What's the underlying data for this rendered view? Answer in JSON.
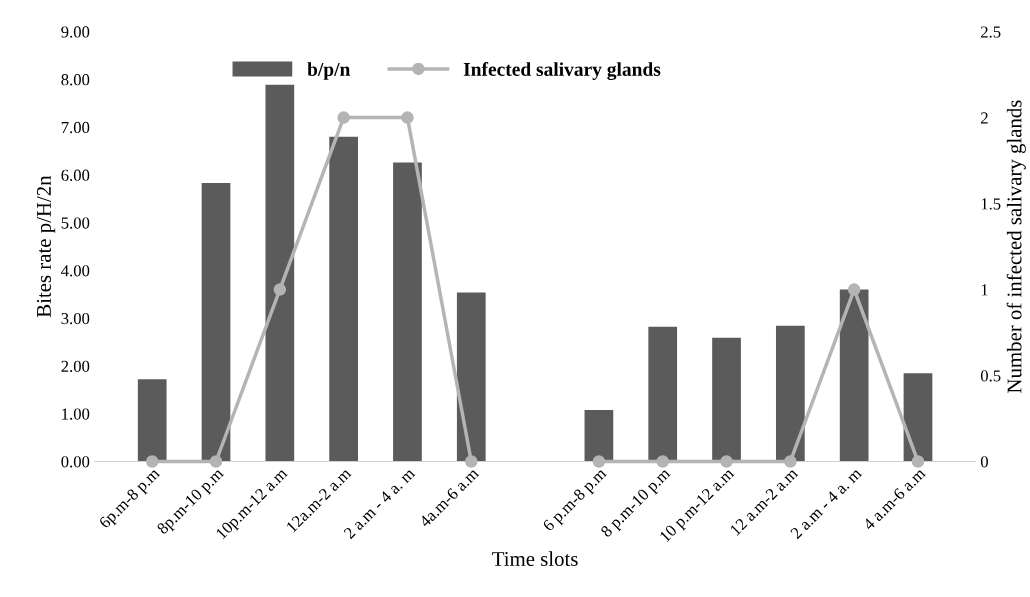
{
  "chart_data": {
    "type": "bar",
    "xlabel": "Time slots",
    "ylabel": "Bites rate p/H/2n",
    "y2label": "Number of infected salivary glands",
    "categories": [
      "6p.m-8 p.m",
      "8p.m-10 p.m",
      "10p.m-12 a.m",
      "12a.m-2 a.m",
      "2 a.m - 4 a. m",
      "4a.m-6 a.m",
      null,
      "6 p.m-8 p.m",
      "8 p.m-10 p.m",
      "10 p.m-12 a.m",
      "12 a.m-2 a.m",
      "2 a.m - 4 a. m",
      "4 a.m-6 a.m"
    ],
    "series": [
      {
        "name": "b/p/n",
        "color": "#5b5b5b",
        "values": [
          1.72,
          5.83,
          7.89,
          6.8,
          6.26,
          3.54,
          null,
          1.08,
          2.82,
          2.59,
          2.84,
          3.6,
          1.85
        ]
      },
      {
        "name": "Infected salivary glands",
        "type": "line",
        "axis": "y2",
        "color": "#b4b4b4",
        "marker": "circle",
        "values": [
          0,
          0,
          1,
          2,
          2,
          0,
          null,
          0,
          0,
          0,
          0,
          1,
          0
        ]
      }
    ],
    "ylim": [
      0,
      9
    ],
    "yticks": [
      {
        "value": 0,
        "label": "0.00"
      },
      {
        "value": 1,
        "label": "1.00"
      },
      {
        "value": 2,
        "label": "2.00"
      },
      {
        "value": 3,
        "label": "3.00"
      },
      {
        "value": 4,
        "label": "4.00"
      },
      {
        "value": 5,
        "label": "5.00"
      },
      {
        "value": 6,
        "label": "6.00"
      },
      {
        "value": 7,
        "label": "7.00"
      },
      {
        "value": 8,
        "label": "8.00"
      },
      {
        "value": 9,
        "label": "9.00"
      }
    ],
    "y2lim": [
      0,
      2.5
    ],
    "y2ticks": [
      0,
      0.5,
      1,
      1.5,
      2,
      2.5
    ],
    "grid": false,
    "legend": "top"
  }
}
